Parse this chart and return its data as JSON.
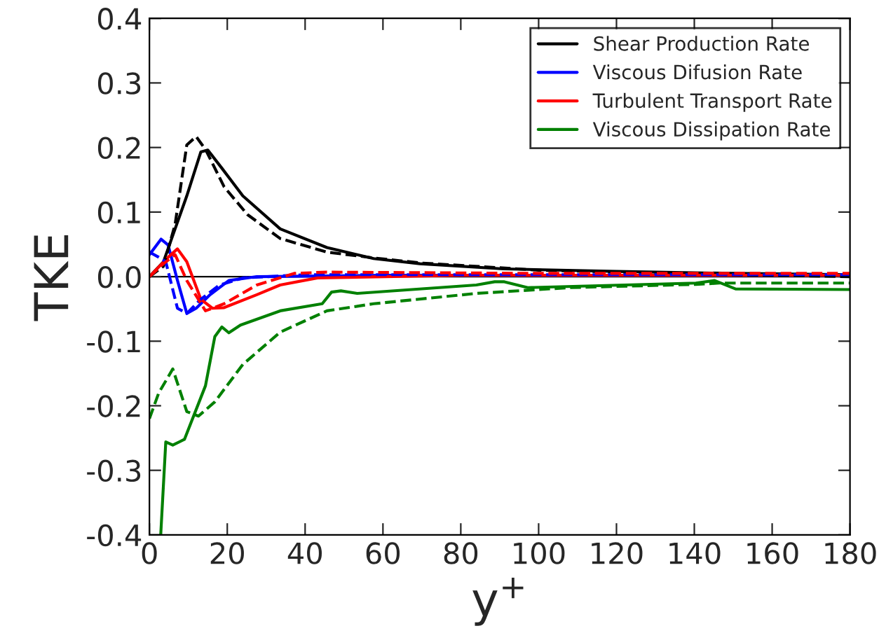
{
  "chart_data": {
    "type": "line",
    "xlabel": "y$^{+}$",
    "ylabel": "TKE",
    "xlim": [
      0,
      180
    ],
    "xticks": [
      0,
      20,
      40,
      60,
      80,
      100,
      120,
      140,
      160,
      180
    ],
    "ylim": [
      -0.4,
      0.4
    ],
    "yticks": [
      -0.4,
      -0.3,
      -0.2,
      -0.1,
      {
        "value": 0,
        "label": "0.0"
      },
      0.1,
      0.2,
      0.3,
      0.4
    ],
    "grid": false,
    "legend": "top right",
    "marker": "none",
    "ref_lines": [
      {
        "axis": "y",
        "value": 0,
        "color": "#000000"
      }
    ],
    "series": [
      {
        "name": "Shear Production Rate",
        "color": "#000000",
        "line_style": "solid",
        "x": [
          0,
          3.6,
          9.6,
          13.2,
          15,
          18.6,
          24,
          33.6,
          45.6,
          57.6,
          69.5,
          91,
          120,
          150,
          180
        ],
        "values": [
          0,
          0.023,
          0.125,
          0.193,
          0.196,
          0.168,
          0.125,
          0.074,
          0.045,
          0.028,
          0.02,
          0.012,
          0.008,
          0.005,
          0.003
        ]
      },
      {
        "name": "Viscous Difusion Rate",
        "color": "#0000ff",
        "line_style": "solid",
        "x": [
          0,
          3,
          4.8,
          7.2,
          9.6,
          12,
          15.6,
          20.4,
          27.6,
          60,
          120,
          180
        ],
        "values": [
          0.034,
          0.058,
          0.049,
          -0.006,
          -0.057,
          -0.049,
          -0.028,
          -0.006,
          0,
          0.002,
          0.002,
          0.002
        ]
      },
      {
        "name": "Turbulent Transport Rate",
        "color": "#ff0000",
        "line_style": "solid",
        "x": [
          0,
          4.8,
          7.2,
          9.6,
          13.2,
          16.2,
          19.2,
          27.6,
          33.6,
          43.2,
          80,
          180
        ],
        "values": [
          0,
          0.03,
          0.043,
          0.023,
          -0.035,
          -0.049,
          -0.048,
          -0.028,
          -0.013,
          -0.002,
          0.002,
          0.002
        ]
      },
      {
        "name": "Viscous Dissipation Rate",
        "color": "#008000",
        "line_style": "solid",
        "x": [
          2.9,
          4.2,
          6,
          9,
          14.4,
          16.8,
          18.6,
          20.4,
          23.4,
          33.6,
          44.4,
          46.8,
          49.2,
          53.4,
          84,
          88.7,
          91.2,
          97.2,
          140.4,
          145.2,
          150.6,
          180
        ],
        "values": [
          -0.4,
          -0.256,
          -0.261,
          -0.252,
          -0.169,
          -0.093,
          -0.078,
          -0.087,
          -0.075,
          -0.053,
          -0.042,
          -0.024,
          -0.022,
          -0.026,
          -0.013,
          -0.008,
          -0.008,
          -0.017,
          -0.01,
          -0.006,
          -0.019,
          -0.02
        ]
      },
      {
        "color": "#000000",
        "line_style": "dashed",
        "x": [
          0,
          3.6,
          6.6,
          9.6,
          12,
          14.4,
          19.2,
          25.2,
          33.6,
          45.6,
          57.6,
          70,
          100,
          140,
          180
        ],
        "values": [
          0,
          0.016,
          0.081,
          0.204,
          0.217,
          0.197,
          0.139,
          0.096,
          0.059,
          0.038,
          0.029,
          0.021,
          0.01,
          0.004,
          0.0
        ]
      },
      {
        "color": "#0000ff",
        "line_style": "dashed",
        "x": [
          0,
          2.4,
          4.2,
          7.2,
          9.6,
          13.2,
          18,
          24,
          40,
          100,
          180
        ],
        "values": [
          0.038,
          0.03,
          0.023,
          -0.049,
          -0.057,
          -0.035,
          -0.013,
          -0.002,
          0.003,
          0.003,
          0.003
        ]
      },
      {
        "color": "#ff0000",
        "line_style": "dashed",
        "x": [
          0,
          3.6,
          6.6,
          9.6,
          14.4,
          19.2,
          27.6,
          37.2,
          45.6,
          100,
          180
        ],
        "values": [
          0,
          0.02,
          0.034,
          -0.006,
          -0.053,
          -0.042,
          -0.013,
          0.005,
          0.007,
          0.005,
          0.005
        ]
      },
      {
        "color": "#008000",
        "line_style": "dashed",
        "x": [
          0,
          2.4,
          6,
          9.6,
          12.6,
          16.8,
          24,
          33.6,
          45.6,
          57.6,
          84,
          108,
          140.4,
          146.4,
          180
        ],
        "values": [
          -0.22,
          -0.18,
          -0.143,
          -0.209,
          -0.216,
          -0.194,
          -0.136,
          -0.086,
          -0.053,
          -0.042,
          -0.026,
          -0.017,
          -0.012,
          -0.01,
          -0.01
        ]
      }
    ]
  }
}
